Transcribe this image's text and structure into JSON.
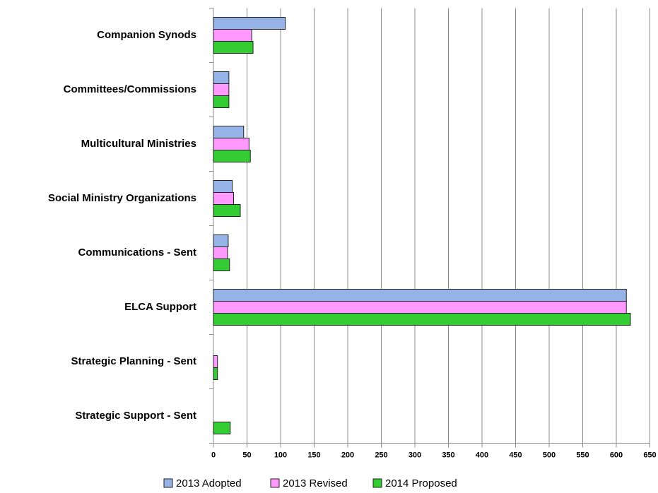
{
  "chart_data": {
    "type": "bar",
    "orientation": "horizontal",
    "categories": [
      "Companion Synods",
      "Committees/Commissions",
      "Multicultural Ministries",
      "Social Ministry Organizations",
      "Communications - Sent",
      "ELCA Support",
      "Strategic Planning - Sent",
      "Strategic Support - Sent"
    ],
    "series": [
      {
        "name": "2013 Adopted",
        "color": "#95b3e6",
        "values": [
          107,
          23,
          45,
          28,
          22,
          615,
          0,
          0
        ]
      },
      {
        "name": "2013 Revised",
        "color": "#ff99ff",
        "values": [
          57,
          23,
          53,
          30,
          21,
          615,
          6,
          0
        ]
      },
      {
        "name": "2014 Proposed",
        "color": "#33cc33",
        "values": [
          59,
          23,
          55,
          40,
          24,
          621,
          6,
          25
        ]
      }
    ],
    "xlim": [
      0,
      650
    ],
    "xticks": [
      0,
      50,
      100,
      150,
      200,
      250,
      300,
      350,
      400,
      450,
      500,
      550,
      600,
      650
    ],
    "grid": true,
    "legend": "bottom"
  }
}
